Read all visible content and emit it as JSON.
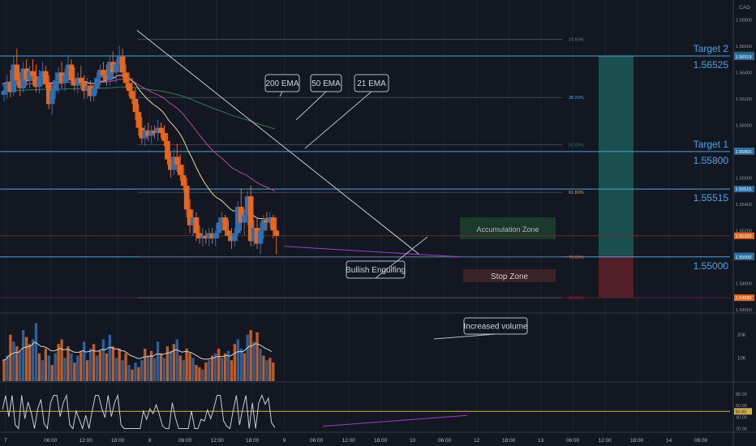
{
  "chart_data": {
    "type": "candlestick",
    "title": "",
    "currency": "CAD",
    "colors": {
      "background": "#131722",
      "up": "#2e6fb5",
      "down": "#e8671c",
      "hline": "#4aa3df",
      "text_blue": "#4aa3df",
      "price_scale": "#9598a1",
      "ema21": "#e8d9a8",
      "ema50": "#b04d9a",
      "ema200": "#2e7d5b",
      "target_fill": "#1d5755",
      "stop_fill": "#5a1f28",
      "accum_fill": "#1c3a2c",
      "fib_line": "#5d606b"
    },
    "price_axis": {
      "ylim": [
        1.5458,
        1.5695
      ],
      "ticks": [
        "1.56800",
        "1.56600",
        "1.56400",
        "1.56200",
        "1.56000",
        "1.55800",
        "1.55600",
        "1.55400",
        "1.55200",
        "1.55000",
        "1.54800",
        "1.54600"
      ],
      "tick_values": [
        1.568,
        1.566,
        1.564,
        1.562,
        1.56,
        1.558,
        1.556,
        1.554,
        1.552,
        1.55,
        1.548,
        1.546
      ],
      "labels": [
        {
          "text": "1.56535",
          "value": 1.56535,
          "bg": "#1d5755"
        },
        {
          "text": "1.56525",
          "value": 1.56525,
          "bg": "#2a6fa0"
        },
        {
          "text": "1.56519",
          "value": 1.56519,
          "bg": "#2a6fa0"
        },
        {
          "text": "1.55805",
          "value": 1.55805,
          "bg": "#2a6fa0"
        },
        {
          "text": "1.55800",
          "value": 1.558,
          "bg": "#2a6fa0"
        },
        {
          "text": "1.55515",
          "value": 1.55515,
          "bg": "#2a6fa0"
        },
        {
          "text": "1.55160",
          "value": 1.5516,
          "bg": "#e8671c"
        },
        {
          "text": "1.55008",
          "value": 1.55008,
          "bg": "#2a6fa0"
        },
        {
          "text": "1.55000",
          "value": 1.55,
          "bg": "#2a6fa0"
        },
        {
          "text": "1.54690",
          "value": 1.5469,
          "bg": "#e8671c"
        }
      ]
    },
    "time_axis": {
      "labels": [
        "7",
        "06:00",
        "12:00",
        "18:00",
        "8",
        "06:00",
        "12:00",
        "18:00",
        "9",
        "06:00",
        "12:00",
        "18:00",
        "10",
        "06:00",
        "12",
        "18:00",
        "13",
        "06:00",
        "12:00",
        "18:00",
        "14",
        "06:00"
      ],
      "bar_index": [
        1,
        15,
        26,
        36,
        46,
        57,
        67,
        78,
        88,
        98,
        108,
        118,
        128,
        138,
        148,
        158,
        168,
        178,
        188,
        198,
        208,
        218
      ],
      "total_slots": 230
    },
    "candles": [
      [
        1.5623,
        1.563,
        1.5618,
        1.5626
      ],
      [
        1.5626,
        1.5638,
        1.562,
        1.5633
      ],
      [
        1.5633,
        1.5642,
        1.5621,
        1.5625
      ],
      [
        1.5625,
        1.5652,
        1.5622,
        1.5646
      ],
      [
        1.5646,
        1.5658,
        1.563,
        1.5634
      ],
      [
        1.5634,
        1.564,
        1.5622,
        1.5628
      ],
      [
        1.5628,
        1.5648,
        1.5625,
        1.5643
      ],
      [
        1.5643,
        1.565,
        1.563,
        1.5634
      ],
      [
        1.5634,
        1.5645,
        1.5628,
        1.5641
      ],
      [
        1.5641,
        1.565,
        1.563,
        1.5637
      ],
      [
        1.5637,
        1.5646,
        1.5625,
        1.5629
      ],
      [
        1.5629,
        1.5642,
        1.5624,
        1.5636
      ],
      [
        1.5636,
        1.5648,
        1.563,
        1.5641
      ],
      [
        1.5641,
        1.5645,
        1.5628,
        1.5631
      ],
      [
        1.5631,
        1.5638,
        1.5612,
        1.5616
      ],
      [
        1.5616,
        1.563,
        1.5608,
        1.5626
      ],
      [
        1.5626,
        1.564,
        1.562,
        1.5634
      ],
      [
        1.5634,
        1.5644,
        1.5624,
        1.564
      ],
      [
        1.564,
        1.5648,
        1.5628,
        1.5632
      ],
      [
        1.5632,
        1.5643,
        1.5626,
        1.5638
      ],
      [
        1.5638,
        1.5652,
        1.5632,
        1.5646
      ],
      [
        1.5646,
        1.565,
        1.563,
        1.5634
      ],
      [
        1.5634,
        1.5644,
        1.5626,
        1.563
      ],
      [
        1.563,
        1.564,
        1.5624,
        1.5636
      ],
      [
        1.5636,
        1.5645,
        1.5628,
        1.5632
      ],
      [
        1.5632,
        1.5638,
        1.562,
        1.5626
      ],
      [
        1.5626,
        1.5636,
        1.562,
        1.563
      ],
      [
        1.563,
        1.5634,
        1.5618,
        1.5622
      ],
      [
        1.5622,
        1.5632,
        1.5618,
        1.5628
      ],
      [
        1.5628,
        1.564,
        1.5624,
        1.5636
      ],
      [
        1.5636,
        1.5646,
        1.563,
        1.5642
      ],
      [
        1.5642,
        1.5648,
        1.5634,
        1.5638
      ],
      [
        1.5638,
        1.5646,
        1.563,
        1.5634
      ],
      [
        1.5634,
        1.5652,
        1.563,
        1.5648
      ],
      [
        1.5648,
        1.5656,
        1.5636,
        1.564
      ],
      [
        1.564,
        1.565,
        1.5632,
        1.5646
      ],
      [
        1.5646,
        1.566,
        1.564,
        1.5652
      ],
      [
        1.5652,
        1.5658,
        1.5636,
        1.564
      ],
      [
        1.564,
        1.5646,
        1.5628,
        1.5632
      ],
      [
        1.5632,
        1.564,
        1.5622,
        1.5626
      ],
      [
        1.5626,
        1.5636,
        1.5616,
        1.562
      ],
      [
        1.562,
        1.5628,
        1.5604,
        1.561
      ],
      [
        1.561,
        1.5616,
        1.5592,
        1.5598
      ],
      [
        1.5598,
        1.5606,
        1.5586,
        1.559
      ],
      [
        1.559,
        1.56,
        1.5584,
        1.5596
      ],
      [
        1.5596,
        1.5602,
        1.5588,
        1.5592
      ],
      [
        1.5592,
        1.56,
        1.5586,
        1.5596
      ],
      [
        1.5596,
        1.56,
        1.559,
        1.5594
      ],
      [
        1.5594,
        1.5604,
        1.5588,
        1.5598
      ],
      [
        1.5598,
        1.5602,
        1.559,
        1.5594
      ],
      [
        1.5594,
        1.56,
        1.5584,
        1.5588
      ],
      [
        1.5588,
        1.5594,
        1.557,
        1.5574
      ],
      [
        1.5574,
        1.558,
        1.556,
        1.5566
      ],
      [
        1.5566,
        1.5582,
        1.5562,
        1.5576
      ],
      [
        1.5576,
        1.5586,
        1.5564,
        1.557
      ],
      [
        1.557,
        1.5578,
        1.5558,
        1.5562
      ],
      [
        1.5562,
        1.557,
        1.555,
        1.5554
      ],
      [
        1.5554,
        1.556,
        1.553,
        1.5536
      ],
      [
        1.5536,
        1.5544,
        1.5518,
        1.5524
      ],
      [
        1.5524,
        1.5536,
        1.5516,
        1.553
      ],
      [
        1.553,
        1.5534,
        1.5512,
        1.5518
      ],
      [
        1.5518,
        1.5524,
        1.551,
        1.5514
      ],
      [
        1.5514,
        1.5522,
        1.5508,
        1.5516
      ],
      [
        1.5516,
        1.552,
        1.551,
        1.5514
      ],
      [
        1.5514,
        1.5522,
        1.5508,
        1.5518
      ],
      [
        1.5518,
        1.5522,
        1.551,
        1.5514
      ],
      [
        1.5514,
        1.552,
        1.5508,
        1.5518
      ],
      [
        1.5518,
        1.553,
        1.5514,
        1.5526
      ],
      [
        1.5526,
        1.5534,
        1.552,
        1.553
      ],
      [
        1.553,
        1.5532,
        1.5516,
        1.552
      ],
      [
        1.552,
        1.5528,
        1.5512,
        1.5516
      ],
      [
        1.5516,
        1.5522,
        1.5506,
        1.5512
      ],
      [
        1.5512,
        1.5522,
        1.5508,
        1.5518
      ],
      [
        1.5518,
        1.5542,
        1.5516,
        1.5538
      ],
      [
        1.5538,
        1.5552,
        1.552,
        1.5526
      ],
      [
        1.5526,
        1.5536,
        1.5516,
        1.5532
      ],
      [
        1.5532,
        1.555,
        1.5524,
        1.5546
      ],
      [
        1.5546,
        1.5554,
        1.5508,
        1.5512
      ],
      [
        1.5512,
        1.5528,
        1.5508,
        1.5522
      ],
      [
        1.5522,
        1.553,
        1.5506,
        1.551
      ],
      [
        1.551,
        1.5526,
        1.5502,
        1.552
      ],
      [
        1.552,
        1.5532,
        1.5514,
        1.5528
      ],
      [
        1.5528,
        1.5534,
        1.552,
        1.5526
      ],
      [
        1.5526,
        1.5534,
        1.5522,
        1.553
      ],
      [
        1.553,
        1.5532,
        1.5514,
        1.552
      ],
      [
        1.552,
        1.553,
        1.5502,
        1.5516
      ]
    ],
    "volume": [
      [
        9000,
        0
      ],
      [
        11000,
        1
      ],
      [
        20000,
        0
      ],
      [
        17000,
        1
      ],
      [
        15000,
        0
      ],
      [
        13000,
        1
      ],
      [
        22000,
        1
      ],
      [
        19000,
        0
      ],
      [
        16000,
        0
      ],
      [
        18000,
        1
      ],
      [
        25000,
        1
      ],
      [
        12000,
        0
      ],
      [
        9000,
        1
      ],
      [
        14000,
        0
      ],
      [
        11000,
        1
      ],
      [
        7000,
        0
      ],
      [
        12000,
        1
      ],
      [
        16000,
        0
      ],
      [
        18000,
        0
      ],
      [
        10000,
        1
      ],
      [
        15000,
        0
      ],
      [
        12000,
        1
      ],
      [
        8000,
        0
      ],
      [
        11000,
        1
      ],
      [
        13000,
        0
      ],
      [
        17000,
        1
      ],
      [
        9000,
        0
      ],
      [
        14000,
        1
      ],
      [
        16000,
        0
      ],
      [
        11000,
        1
      ],
      [
        13000,
        0
      ],
      [
        18000,
        1
      ],
      [
        12000,
        0
      ],
      [
        20000,
        1
      ],
      [
        15000,
        0
      ],
      [
        10000,
        1
      ],
      [
        14000,
        0
      ],
      [
        9000,
        1
      ],
      [
        12000,
        0
      ],
      [
        7000,
        1
      ],
      [
        5000,
        0
      ],
      [
        8000,
        1
      ],
      [
        6000,
        0
      ],
      [
        9000,
        1
      ],
      [
        14000,
        0
      ],
      [
        11000,
        1
      ],
      [
        13000,
        0
      ],
      [
        10000,
        1
      ],
      [
        17000,
        1
      ],
      [
        12000,
        0
      ],
      [
        10000,
        1
      ],
      [
        15000,
        0
      ],
      [
        13000,
        1
      ],
      [
        16000,
        0
      ],
      [
        18000,
        1
      ],
      [
        11000,
        0
      ],
      [
        9000,
        1
      ],
      [
        14000,
        0
      ],
      [
        12000,
        0
      ],
      [
        10000,
        1
      ],
      [
        7000,
        0
      ],
      [
        6000,
        0
      ],
      [
        5000,
        1
      ],
      [
        8000,
        0
      ],
      [
        9000,
        1
      ],
      [
        11000,
        0
      ],
      [
        12000,
        1
      ],
      [
        14000,
        0
      ],
      [
        10000,
        1
      ],
      [
        12000,
        0
      ],
      [
        13000,
        1
      ],
      [
        9000,
        0
      ],
      [
        16000,
        0
      ],
      [
        18000,
        1
      ],
      [
        14000,
        1
      ],
      [
        12000,
        0
      ],
      [
        20000,
        1
      ],
      [
        22000,
        0
      ],
      [
        17000,
        1
      ],
      [
        21000,
        0
      ],
      [
        14000,
        1
      ],
      [
        11000,
        0
      ],
      [
        9000,
        1
      ],
      [
        10000,
        0
      ],
      [
        8000,
        0
      ]
    ],
    "volume_axis": {
      "ylim": [
        0,
        29000
      ],
      "ticks": [
        "20K",
        "10K"
      ],
      "tick_values": [
        20000,
        10000
      ]
    },
    "oscillator_axis": {
      "ylim": [
        15,
        100
      ],
      "ticks": [
        "80.00",
        "60.00",
        "40.00",
        "20.00"
      ],
      "tick_values": [
        80,
        60,
        40,
        20
      ],
      "hline": 50,
      "hline_label": "50.00"
    },
    "levels": [
      {
        "name": "Target 2",
        "label": "1.56525",
        "value": 1.56525
      },
      {
        "name": "Target 1",
        "label": "1.55800",
        "value": 1.558
      },
      {
        "name": "",
        "label": "1.55515",
        "value": 1.55515
      },
      {
        "name": "",
        "label": "1.55000",
        "value": 1.55
      }
    ],
    "fib": [
      {
        "label": "23.60%",
        "value": 1.5665,
        "color": "#787b86"
      },
      {
        "label": "38.20%",
        "value": 1.5621,
        "color": "#4aa3df"
      },
      {
        "label": "50.00%",
        "value": 1.5585,
        "color": "#2e7d5b"
      },
      {
        "label": "61.80%",
        "value": 1.5549,
        "color": "#d1b04b"
      },
      {
        "label": "78.60%",
        "value": 1.55,
        "color": "#e8671c"
      },
      {
        "label": "88.60%",
        "value": 1.5469,
        "color": "#a8203a"
      }
    ],
    "annotations": {
      "ema200": "200 EMA",
      "ema50": "50 EMA",
      "ema21": "21 EMA",
      "accumulation": "Accumulation Zone",
      "stop": "Stop Zone",
      "engulfing": "Bullish Engulfing",
      "volume": "Increased volume"
    }
  }
}
